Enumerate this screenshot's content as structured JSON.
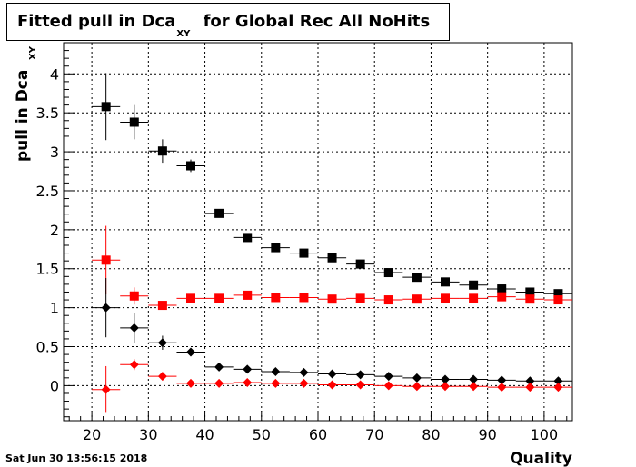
{
  "title": {
    "main": "Fitted pull in Dca",
    "sub": "XY",
    "rest": "for Global Rec All NoHits"
  },
  "footer": {
    "timestamp": "Sat Jun 30 13:56:15 2018"
  },
  "chart_data": {
    "type": "scatter",
    "xlabel": "Quality",
    "ylabel": "pull in Dca",
    "ylabel_sub": "XY",
    "xlim": [
      15,
      105
    ],
    "ylim": [
      -0.45,
      4.4
    ],
    "xticks": [
      20,
      30,
      40,
      50,
      60,
      70,
      80,
      90,
      100
    ],
    "yticks": [
      0,
      0.5,
      1,
      1.5,
      2,
      2.5,
      3,
      3.5,
      4
    ],
    "ytick_labels": [
      "0",
      "0.5",
      "1",
      "1.5",
      "2",
      "2.5",
      "3",
      "3.5",
      "4"
    ],
    "grid": true,
    "x_bin_halfwidth": 2.5,
    "series": [
      {
        "marker": "square",
        "color": "#000000",
        "x": [
          22.5,
          27.5,
          32.5,
          37.5,
          42.5,
          47.5,
          52.5,
          57.5,
          62.5,
          67.5,
          72.5,
          77.5,
          82.5,
          87.5,
          92.5,
          97.5,
          102.5
        ],
        "y": [
          3.58,
          3.38,
          3.01,
          2.82,
          2.21,
          1.9,
          1.77,
          1.7,
          1.64,
          1.56,
          1.45,
          1.39,
          1.33,
          1.29,
          1.24,
          1.2,
          1.18
        ],
        "yerr": [
          0.43,
          0.22,
          0.15,
          0.08,
          0.03,
          0.02,
          0.02,
          0.02,
          0.02,
          0.02,
          0.02,
          0.02,
          0.02,
          0.02,
          0.02,
          0.02,
          0.02
        ]
      },
      {
        "marker": "square",
        "color": "#ff0000",
        "x": [
          22.5,
          27.5,
          32.5,
          37.5,
          42.5,
          47.5,
          52.5,
          57.5,
          62.5,
          67.5,
          72.5,
          77.5,
          82.5,
          87.5,
          92.5,
          97.5,
          102.5
        ],
        "y": [
          1.61,
          1.15,
          1.03,
          1.12,
          1.12,
          1.16,
          1.13,
          1.13,
          1.11,
          1.12,
          1.1,
          1.11,
          1.12,
          1.12,
          1.14,
          1.11,
          1.1
        ],
        "yerr": [
          0.44,
          0.11,
          0.04,
          0.03,
          0.02,
          0.02,
          0.02,
          0.02,
          0.02,
          0.02,
          0.02,
          0.02,
          0.02,
          0.02,
          0.02,
          0.02,
          0.02
        ]
      },
      {
        "marker": "diamond",
        "color": "#000000",
        "x": [
          22.5,
          27.5,
          32.5,
          37.5,
          42.5,
          47.5,
          52.5,
          57.5,
          62.5,
          67.5,
          72.5,
          77.5,
          82.5,
          87.5,
          92.5,
          97.5,
          102.5
        ],
        "y": [
          1.0,
          0.74,
          0.55,
          0.43,
          0.24,
          0.21,
          0.18,
          0.17,
          0.15,
          0.14,
          0.12,
          0.1,
          0.08,
          0.08,
          0.07,
          0.06,
          0.06
        ],
        "yerr": [
          0.38,
          0.19,
          0.09,
          0.05,
          0.02,
          0.02,
          0.01,
          0.01,
          0.01,
          0.01,
          0.01,
          0.01,
          0.01,
          0.01,
          0.01,
          0.01,
          0.01
        ]
      },
      {
        "marker": "diamond",
        "color": "#ff0000",
        "x": [
          22.5,
          27.5,
          32.5,
          37.5,
          42.5,
          47.5,
          52.5,
          57.5,
          62.5,
          67.5,
          72.5,
          77.5,
          82.5,
          87.5,
          92.5,
          97.5,
          102.5
        ],
        "y": [
          -0.05,
          0.27,
          0.12,
          0.03,
          0.03,
          0.04,
          0.03,
          0.03,
          0.01,
          0.01,
          0.0,
          -0.01,
          -0.01,
          -0.01,
          -0.02,
          -0.02,
          -0.02
        ],
        "yerr": [
          0.3,
          0.07,
          0.03,
          0.02,
          0.01,
          0.01,
          0.01,
          0.01,
          0.01,
          0.01,
          0.01,
          0.01,
          0.01,
          0.01,
          0.01,
          0.01,
          0.01
        ]
      }
    ]
  }
}
